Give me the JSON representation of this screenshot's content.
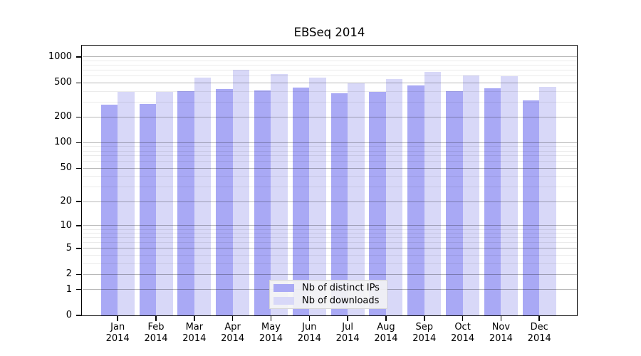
{
  "chart_data": {
    "type": "bar",
    "title": "EBSeq 2014",
    "categories": [
      "Jan 2014",
      "Feb 2014",
      "Mar 2014",
      "Apr 2014",
      "May 2014",
      "Jun 2014",
      "Jul 2014",
      "Aug 2014",
      "Sep 2014",
      "Oct 2014",
      "Nov 2014",
      "Dec 2014"
    ],
    "series": [
      {
        "name": "Nb of distinct IPs",
        "color": "#a9a9f5",
        "values": [
          280,
          285,
          400,
          425,
          405,
          440,
          375,
          395,
          470,
          400,
          430,
          310
        ]
      },
      {
        "name": "Nb of downloads",
        "color": "#d8d8f8",
        "values": [
          390,
          390,
          580,
          705,
          630,
          575,
          495,
          555,
          665,
          610,
          600,
          450
        ]
      }
    ],
    "xlabel": "",
    "ylabel": "",
    "y_axis": {
      "scale": "log10(1+x)",
      "tick_values": [
        0,
        1,
        2,
        5,
        10,
        20,
        50,
        100,
        200,
        500,
        1000
      ],
      "ylim": [
        0,
        1380
      ]
    },
    "grid": {
      "show": true,
      "orientation": "horizontal",
      "minor_values_rule": "1-9 by 1, 10-90 by 10, 100-1000 by 100",
      "major_color": "rgba(0,0,0,0.28)",
      "minor_color": "rgba(0,0,0,0.08)"
    },
    "legend": {
      "position": "inside-bottom-center",
      "entries": [
        "Nb of distinct IPs",
        "Nb of downloads"
      ]
    },
    "frame_color": "#000000",
    "background_color": "#ffffff"
  }
}
